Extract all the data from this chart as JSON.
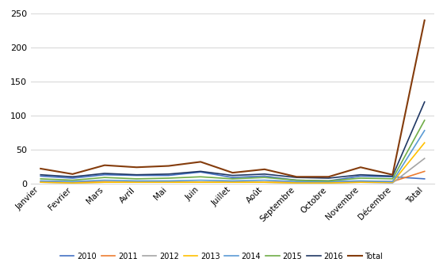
{
  "categories": [
    "Janvier",
    "Fevrier",
    "Mars",
    "Avril",
    "Mai",
    "Juin",
    "Juillet",
    "Août",
    "Septembre",
    "Octobre",
    "Novembre",
    "Décembre",
    "Total"
  ],
  "series": {
    "2010": [
      11,
      8,
      13,
      12,
      12,
      17,
      9,
      11,
      5,
      4,
      11,
      10,
      7
    ],
    "2011": [
      3,
      2,
      3,
      2,
      2,
      2,
      2,
      2,
      2,
      2,
      3,
      3,
      18
    ],
    "2012": [
      2,
      1,
      2,
      2,
      2,
      2,
      2,
      2,
      1,
      1,
      2,
      1,
      37
    ],
    "2013": [
      2,
      1,
      2,
      2,
      2,
      2,
      2,
      2,
      1,
      1,
      2,
      2,
      60
    ],
    "2014": [
      4,
      3,
      5,
      4,
      4,
      5,
      4,
      5,
      3,
      3,
      4,
      3,
      78
    ],
    "2015": [
      7,
      5,
      9,
      7,
      8,
      10,
      7,
      9,
      5,
      4,
      8,
      7,
      93
    ],
    "2016": [
      13,
      10,
      15,
      13,
      14,
      18,
      12,
      14,
      9,
      8,
      13,
      11,
      120
    ],
    "Total": [
      22,
      14,
      27,
      24,
      26,
      32,
      16,
      21,
      10,
      10,
      24,
      13,
      240
    ]
  },
  "colors": {
    "2010": "#4472c4",
    "2011": "#ed7d31",
    "2012": "#a5a5a5",
    "2013": "#ffc000",
    "2014": "#5b9bd5",
    "2015": "#70ad47",
    "2016": "#203864",
    "Total": "#843c0c"
  },
  "ylim": [
    0,
    250
  ],
  "yticks": [
    0,
    50,
    100,
    150,
    200,
    250
  ],
  "background_color": "#ffffff",
  "grid_color": "#d9d9d9",
  "figsize": [
    5.59,
    3.41
  ],
  "dpi": 100
}
